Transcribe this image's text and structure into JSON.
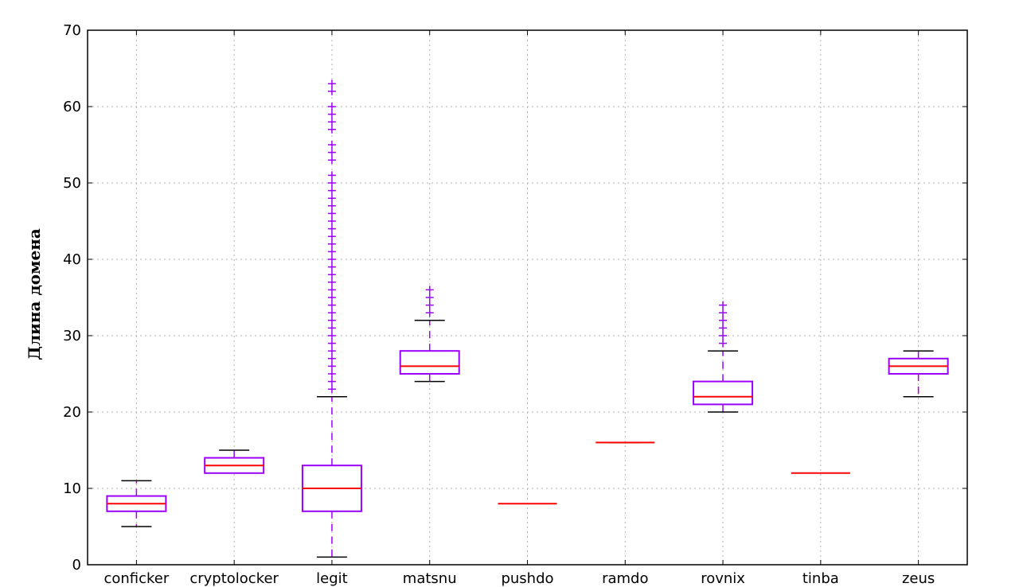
{
  "chart_data": {
    "type": "box",
    "title": "",
    "xlabel": "",
    "ylabel": "Длина домена",
    "ylim": [
      0,
      70
    ],
    "yticks": [
      0,
      10,
      20,
      30,
      40,
      50,
      60,
      70
    ],
    "grid": true,
    "colors": {
      "box": "#9900ff",
      "median": "#ff0000",
      "whisker": "#9900ff",
      "cap": "#000000",
      "flier": "#9900ff",
      "grid": "#b0b0b0"
    },
    "categories": [
      "conficker",
      "cryptolocker",
      "legit",
      "matsnu",
      "pushdo",
      "ramdo",
      "rovnix",
      "tinba",
      "zeus"
    ],
    "boxes": [
      {
        "name": "conficker",
        "whislo": 5,
        "q1": 7,
        "med": 8,
        "q3": 9,
        "whishi": 11,
        "fliers": []
      },
      {
        "name": "cryptolocker",
        "whislo": 12,
        "q1": 12,
        "med": 13,
        "q3": 14,
        "whishi": 15,
        "fliers": []
      },
      {
        "name": "legit",
        "whislo": 1,
        "q1": 7,
        "med": 10,
        "q3": 13,
        "whishi": 22,
        "fliers": [
          23,
          24,
          25,
          26,
          27,
          28,
          29,
          30,
          31,
          32,
          33,
          34,
          35,
          36,
          37,
          38,
          39,
          40,
          41,
          42,
          43,
          44,
          45,
          46,
          47,
          48,
          49,
          50,
          51,
          53,
          54,
          55,
          57,
          58,
          59,
          60,
          62,
          63
        ]
      },
      {
        "name": "matsnu",
        "whislo": 24,
        "q1": 25,
        "med": 26,
        "q3": 28,
        "whishi": 32,
        "fliers": [
          33,
          34,
          35,
          36
        ]
      },
      {
        "name": "pushdo",
        "whislo": 8,
        "q1": 8,
        "med": 8,
        "q3": 8,
        "whishi": 8,
        "fliers": []
      },
      {
        "name": "ramdo",
        "whislo": 16,
        "q1": 16,
        "med": 16,
        "q3": 16,
        "whishi": 16,
        "fliers": []
      },
      {
        "name": "rovnix",
        "whislo": 20,
        "q1": 21,
        "med": 22,
        "q3": 24,
        "whishi": 28,
        "fliers": [
          29,
          30,
          31,
          32,
          33,
          34
        ]
      },
      {
        "name": "tinba",
        "whislo": 12,
        "q1": 12,
        "med": 12,
        "q3": 12,
        "whishi": 12,
        "fliers": []
      },
      {
        "name": "zeus",
        "whislo": 22,
        "q1": 25,
        "med": 26,
        "q3": 27,
        "whishi": 28,
        "fliers": []
      }
    ]
  }
}
